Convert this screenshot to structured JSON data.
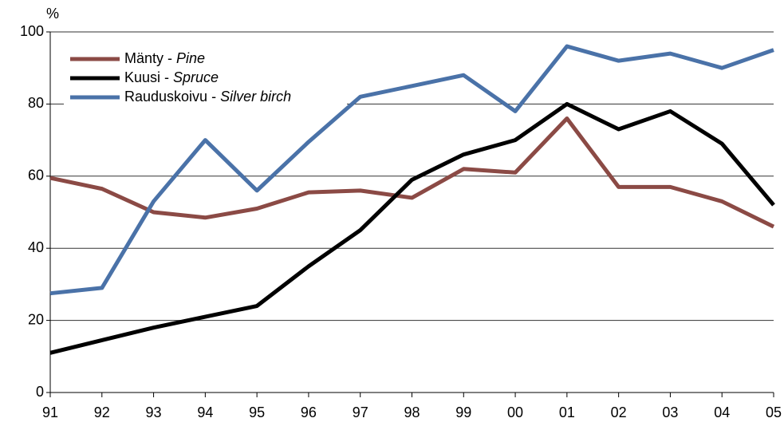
{
  "chart_data": {
    "type": "line",
    "y_label": "%",
    "categories": [
      "91",
      "92",
      "93",
      "94",
      "95",
      "96",
      "97",
      "98",
      "99",
      "00",
      "01",
      "02",
      "03",
      "04",
      "05"
    ],
    "series": [
      {
        "name": "Mänty - Pine",
        "color": "#8b4a45",
        "values": [
          59.5,
          56.5,
          50,
          48.5,
          51,
          55.5,
          56,
          54,
          62,
          61,
          76,
          57,
          57,
          53,
          46
        ]
      },
      {
        "name": "Kuusi - Spruce",
        "color": "#000000",
        "values": [
          11,
          14.5,
          18,
          21,
          24,
          35,
          45,
          59,
          66,
          70,
          80,
          73,
          78,
          69,
          52
        ]
      },
      {
        "name": "Rauduskoivu - Silver birch",
        "color": "#4a72a8",
        "values": [
          27.5,
          29,
          53,
          70,
          56,
          69.5,
          82,
          85,
          88,
          78,
          96,
          92,
          94,
          90,
          95
        ]
      }
    ],
    "ylim": [
      0,
      100
    ],
    "yticks": [
      0,
      20,
      40,
      60,
      80,
      100
    ],
    "grid": true,
    "legend": "upper left"
  }
}
